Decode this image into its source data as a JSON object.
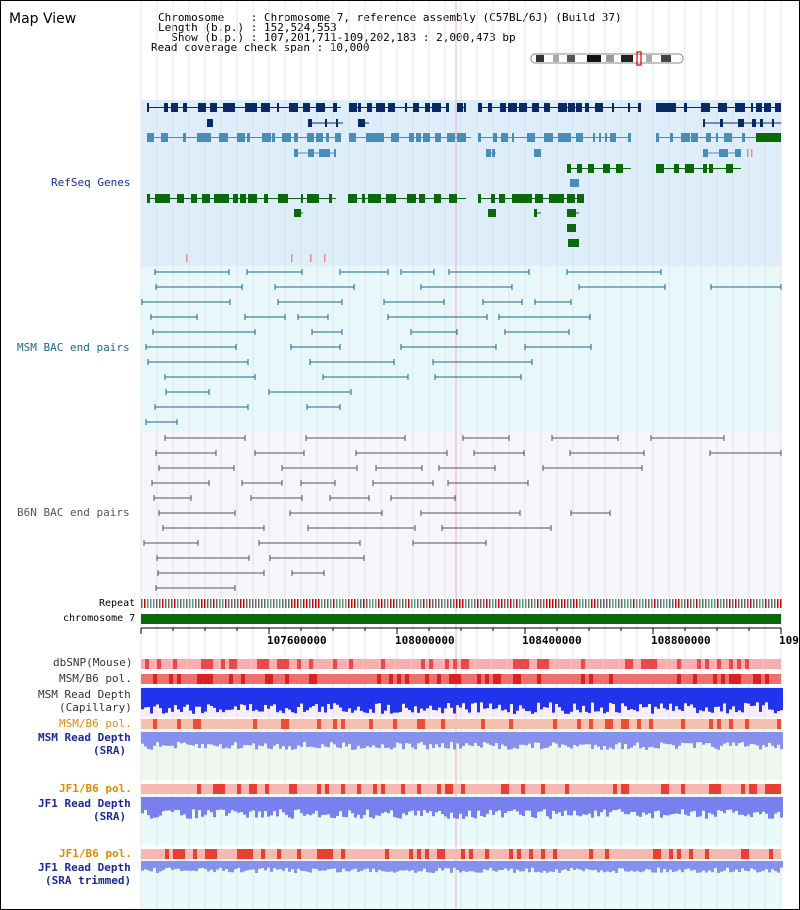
{
  "page": {
    "title": "Map View"
  },
  "header": {
    "chromosome_line": "Chromosome    : Chromosome 7, reference assembly (C57BL/6J) (Build 37)",
    "length_line": "Length (b.p.) : 152,524,553",
    "show_line": "  Show (b.p.) : 107,201,711-109,202,183 : 2,000,473 bp",
    "coverage_line": "Read coverage check span : 10,000"
  },
  "tracks": {
    "refseq": "RefSeq Genes",
    "msm_bac": "MSM BAC end pairs",
    "b6n_bac": "B6N BAC end pairs",
    "repeat": "Repeat",
    "chromosome": "chromosome 7",
    "dbsnp": "dbSNP(Mouse)",
    "msm_b6_pol_1": "MSM/B6 pol.",
    "msm_depth_cap_1": "MSM Read Depth",
    "msm_depth_cap_2": "(Capillary)",
    "msm_b6_pol_2": "MSM/B6 pol.",
    "msm_depth_sra_1": "MSM Read Depth",
    "msm_depth_sra_2": "(SRA)",
    "jf1_pol_1": "JF1/B6 pol.",
    "jf1_depth_sra_1": "JF1 Read Depth",
    "jf1_depth_sra_2": "(SRA)",
    "jf1_pol_2": "JF1/B6 pol.",
    "jf1_depth_trim_1": "JF1 Read Depth",
    "jf1_depth_trim_2": "(SRA trimmed)"
  },
  "axis": {
    "ticks": [
      "107600000",
      "108000000",
      "108400000",
      "108800000",
      "109"
    ]
  },
  "colors": {
    "refseq_bg": "#ddeefa",
    "msm_bg": "#e8f8f8",
    "b6n_bg": "#f5f5fa",
    "dark_blue": "#0a2a66",
    "mid_blue": "#4a8eb8",
    "green": "#0a6a0a",
    "orange": "#e08a00",
    "navy": "#1a2a9a"
  }
}
